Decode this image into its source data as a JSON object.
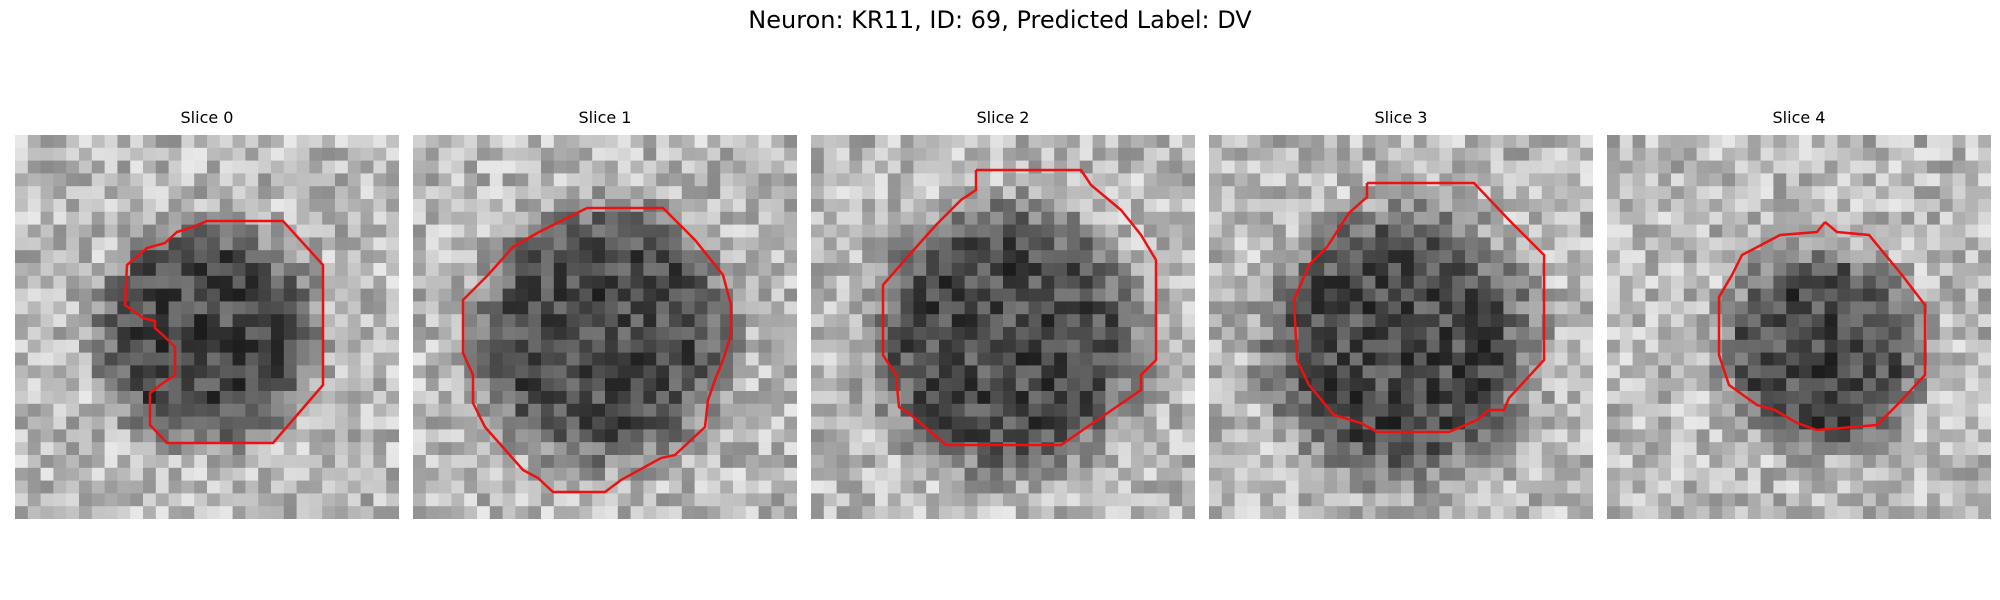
{
  "figure": {
    "title": "Neuron: KR11, ID: 69, Predicted Label: DV"
  },
  "panels": [
    {
      "title": "Slice 0"
    },
    {
      "title": "Slice 1"
    },
    {
      "title": "Slice 2"
    },
    {
      "title": "Slice 3"
    },
    {
      "title": "Slice 4"
    }
  ],
  "colors": {
    "contour": "#ee1111",
    "background": "#ffffff"
  }
}
